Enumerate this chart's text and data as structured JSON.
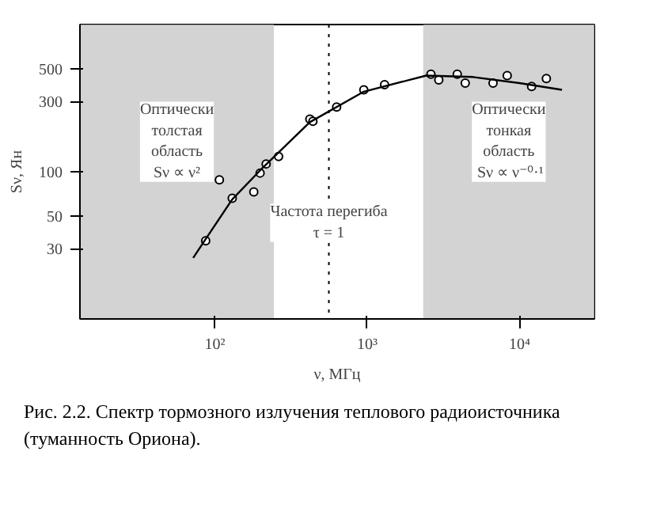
{
  "chart_data": {
    "type": "scatter",
    "xlabel": "ν, МГц",
    "ylabel": "Sν, Ян",
    "log": "xy",
    "xlim": [
      13,
      31000
    ],
    "ylim": [
      10,
      1000
    ],
    "xticks": [
      {
        "value": 100,
        "label": "10²"
      },
      {
        "value": 1000,
        "label": "10³"
      },
      {
        "value": 10000,
        "label": "10⁴"
      }
    ],
    "yticks": [
      30,
      50,
      100,
      300,
      500
    ],
    "grid": false,
    "marker": "circle",
    "series": [
      {
        "color": "#000000",
        "x": [
          87,
          107,
          130,
          180,
          198,
          217,
          262,
          420,
          440,
          630,
          950,
          1300,
          2620,
          2950,
          3900,
          4400,
          6700,
          8300,
          12000,
          15000
        ],
        "values": [
          34,
          88,
          66,
          73,
          98,
          113,
          127,
          228,
          220,
          275,
          360,
          390,
          460,
          420,
          460,
          400,
          400,
          450,
          380,
          430
        ]
      },
      {
        "type": "line",
        "marker": "none",
        "color": "#000000",
        "x": [
          72,
          130,
          207,
          420,
          950,
          2440,
          4950,
          10000,
          19000
        ],
        "values": [
          26,
          65,
          107,
          217,
          350,
          450,
          440,
          400,
          360
        ]
      }
    ],
    "bands": [
      {
        "axis": "x",
        "from": 13,
        "to": 244,
        "label": "Оптически\nтолстая\nобласть\nSν ∝ ν²",
        "color": "#c8c8c8"
      },
      {
        "axis": "x",
        "from": 2330,
        "to": 31000,
        "label": "Оптически\nтонкая\nобласть\nSν ∝ ν⁻⁰·¹",
        "color": "#c8c8c8"
      }
    ],
    "ref_lines": [
      {
        "axis": "x",
        "value": 560,
        "line_style": "dotted",
        "color": "#000000"
      }
    ],
    "annotations": [
      {
        "text": "Частота перегиба\nτ = 1",
        "x": 560,
        "y": 45
      },
      "Рис. 2.2. Спектр тормозного излучения теплового радиоисточника\n(туманность Ориона)."
    ]
  }
}
